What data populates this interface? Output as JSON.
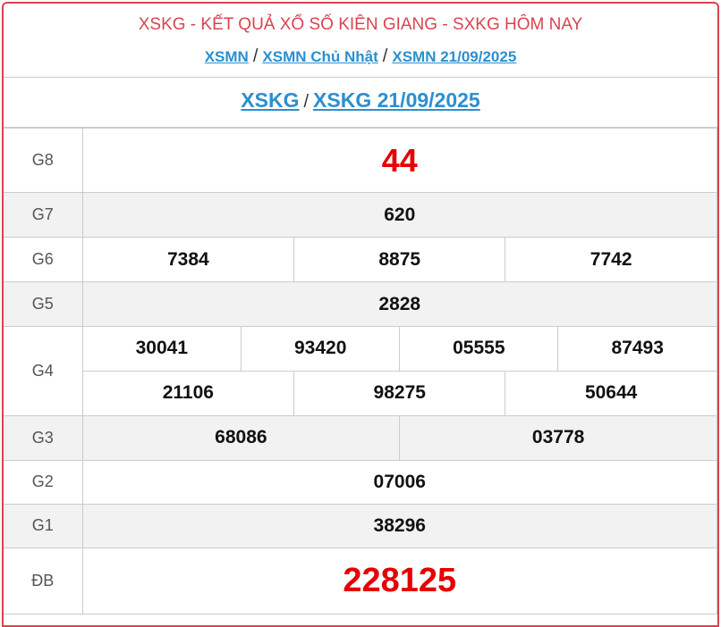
{
  "header": {
    "title": "XSKG - KẾT QUẢ XỔ SỐ KIÊN GIANG - SXKG HÔM NAY",
    "breadcrumbs": [
      "XSMN",
      "XSMN Chủ Nhật",
      "XSMN 21/09/2025"
    ],
    "separator": "/"
  },
  "subheader": {
    "links": [
      "XSKG",
      "XSKG 21/09/2025"
    ],
    "separator": "/"
  },
  "results": {
    "g8": {
      "label": "G8",
      "values": [
        "44"
      ]
    },
    "g7": {
      "label": "G7",
      "values": [
        "620"
      ]
    },
    "g6": {
      "label": "G6",
      "values": [
        "7384",
        "8875",
        "7742"
      ]
    },
    "g5": {
      "label": "G5",
      "values": [
        "2828"
      ]
    },
    "g4": {
      "label": "G4",
      "values": [
        "30041",
        "93420",
        "05555",
        "87493",
        "21106",
        "98275",
        "50644"
      ]
    },
    "g3": {
      "label": "G3",
      "values": [
        "68086",
        "03778"
      ]
    },
    "g2": {
      "label": "G2",
      "values": [
        "07006"
      ]
    },
    "g1": {
      "label": "G1",
      "values": [
        "38296"
      ]
    },
    "db": {
      "label": "ĐB",
      "values": [
        "228125"
      ]
    }
  },
  "colors": {
    "accent": "#d9444f",
    "link": "#2b8fd0",
    "prize": "#e60000"
  }
}
